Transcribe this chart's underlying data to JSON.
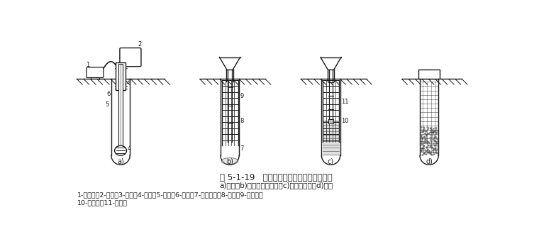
{
  "title_line1": "图 5-1-19   泥浆护壁钻孔灌注桩施工顺序图",
  "title_line2": "a)钻孔；b)下钢筋笼及导管；c)灌注混凝土；d)成桩",
  "legend_line1": "1-泥浆泵；2-钻机；3-护筒；4-钻头；5-钻杆；6-泥浆；7-沉淀泥浆；8-导管；9-钢筋笼；",
  "legend_line2": "10-隔水塞；11-混凝土",
  "bg_color": "#ffffff",
  "line_color": "#1a1a1a",
  "text_color": "#1a1a1a",
  "font_size_title": 8.5,
  "font_size_sub": 7.5,
  "font_size_label": 7,
  "font_size_legend": 6.8
}
